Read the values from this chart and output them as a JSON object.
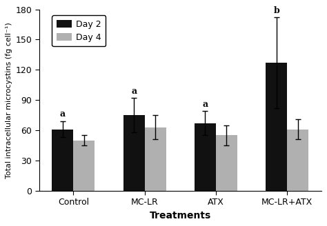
{
  "categories": [
    "Control",
    "MC-LR",
    "ATX",
    "MC-LR+ATX"
  ],
  "day2_values": [
    61,
    75,
    67,
    127
  ],
  "day4_values": [
    50,
    63,
    55,
    61
  ],
  "day2_errors": [
    8,
    17,
    12,
    45
  ],
  "day4_errors": [
    5,
    12,
    10,
    10
  ],
  "day2_color": "#111111",
  "day4_color": "#b0b0b0",
  "day2_label": "Day 2",
  "day4_label": "Day 4",
  "ylabel": "Total intracellular microcystins (fg cell⁻¹)",
  "xlabel": "Treatments",
  "ylim": [
    0,
    180
  ],
  "yticks": [
    0,
    30,
    60,
    90,
    120,
    150,
    180
  ],
  "bar_width": 0.3,
  "annotations_day2": [
    "a",
    "a",
    "a",
    "b"
  ],
  "annot_fontsize": 9
}
